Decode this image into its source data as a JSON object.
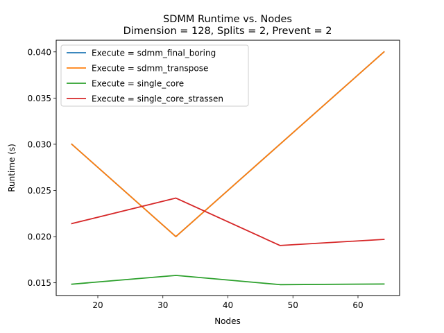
{
  "chart_data": {
    "type": "line",
    "title": "SDMM Runtime vs. Nodes",
    "subtitle": "Dimension = 128, Splits = 2, Prevent = 2",
    "xlabel": "Nodes",
    "ylabel": "Runtime (s)",
    "x": [
      16,
      32,
      48,
      64
    ],
    "xlim": [
      13.6,
      66.4
    ],
    "ylim": [
      0.01362,
      0.04126
    ],
    "xticks": [
      20,
      30,
      40,
      50,
      60
    ],
    "xtick_labels": [
      "20",
      "30",
      "40",
      "50",
      "60"
    ],
    "yticks": [
      0.015,
      0.02,
      0.025,
      0.03,
      0.035,
      0.04
    ],
    "ytick_labels": [
      "0.015",
      "0.020",
      "0.025",
      "0.030",
      "0.035",
      "0.040"
    ],
    "grid": false,
    "legend_position": "upper-left",
    "series": [
      {
        "name": "Execute = sdmm_final_boring",
        "color": "#1f77b4",
        "values": [
          0.03,
          0.02,
          0.03,
          0.04
        ]
      },
      {
        "name": "Execute = sdmm_transpose",
        "color": "#ff7f0e",
        "values": [
          0.03,
          0.02,
          0.03,
          0.04
        ]
      },
      {
        "name": "Execute = single_core",
        "color": "#2ca02c",
        "values": [
          0.01485,
          0.0158,
          0.0148,
          0.01487
        ]
      },
      {
        "name": "Execute = single_core_strassen",
        "color": "#d62728",
        "values": [
          0.02141,
          0.02417,
          0.01904,
          0.0197
        ]
      }
    ]
  }
}
